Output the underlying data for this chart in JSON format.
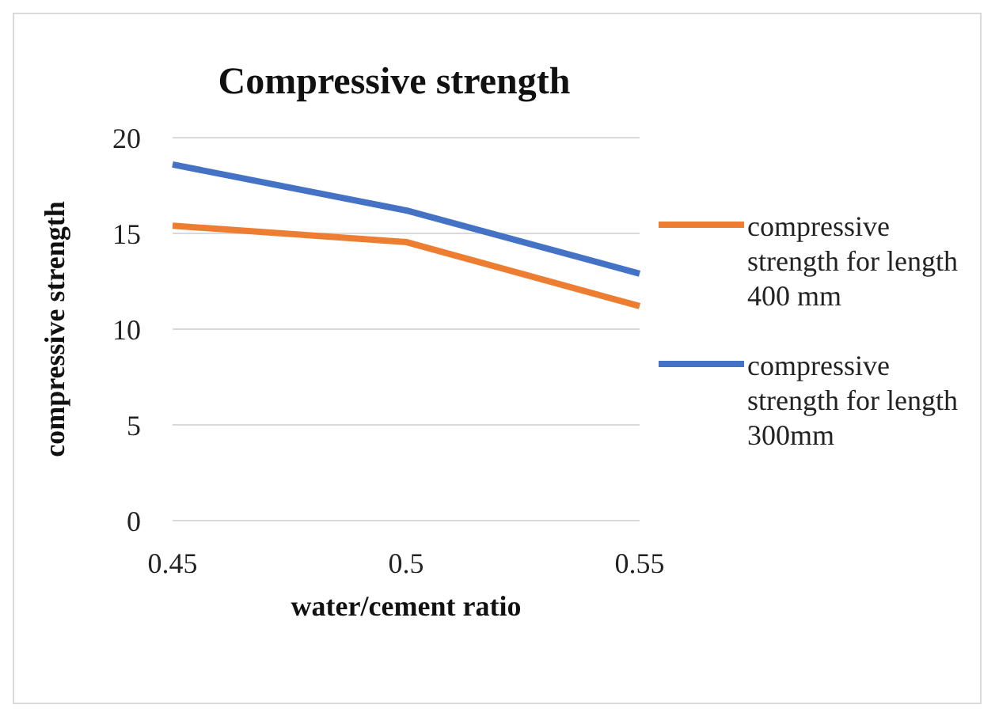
{
  "chart_data": {
    "type": "line",
    "title": "Compressive strength",
    "xlabel": "water/cement ratio",
    "ylabel": "compressive strength",
    "categories": [
      "0.45",
      "0.5",
      "0.55"
    ],
    "series": [
      {
        "name": "compressive strength for length 400 mm",
        "color": "#ed7d31",
        "values": [
          15.4,
          14.55,
          11.2
        ]
      },
      {
        "name": "compressive strength for length 300mm",
        "color": "#4472c4",
        "values": [
          18.6,
          16.2,
          12.9
        ]
      }
    ],
    "ylim": [
      0,
      20
    ],
    "yticks": [
      0,
      5,
      10,
      15,
      20
    ],
    "grid": "y",
    "legend": "right",
    "marker": "none",
    "line_style": "solid"
  }
}
